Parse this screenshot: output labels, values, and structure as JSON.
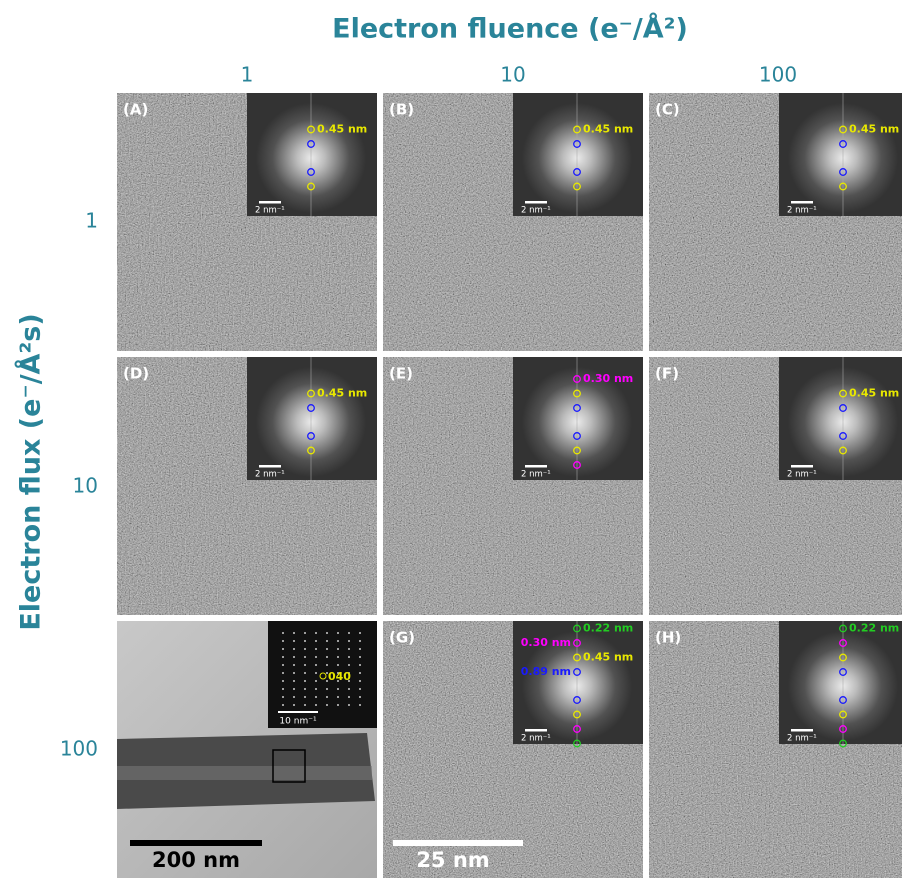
{
  "header": {
    "title": "Electron fluence (e⁻/Å²)",
    "columns": [
      "1",
      "10",
      "100"
    ]
  },
  "side": {
    "title": "Electron flux (e⁻/Å²s)",
    "rows": [
      "1",
      "10",
      "100"
    ]
  },
  "panels": [
    {
      "label": "(A)",
      "rings": [
        "#e8e800",
        "#1a1aff",
        "#1a1aff",
        "#e8e800"
      ],
      "fft_labels": [
        {
          "text": "0.45 nm",
          "color": "#e8e800"
        }
      ],
      "fft_scale": "2 nm⁻¹"
    },
    {
      "label": "(B)",
      "rings": [
        "#e8e800",
        "#1a1aff",
        "#1a1aff",
        "#e8e800"
      ],
      "fft_labels": [
        {
          "text": "0.45 nm",
          "color": "#e8e800"
        }
      ],
      "fft_scale": "2 nm⁻¹"
    },
    {
      "label": "(C)",
      "rings": [
        "#e8e800",
        "#1a1aff",
        "#1a1aff",
        "#e8e800"
      ],
      "fft_labels": [
        {
          "text": "0.45 nm",
          "color": "#e8e800"
        }
      ],
      "fft_scale": "2 nm⁻¹"
    },
    {
      "label": "(D)",
      "rings": [
        "#e8e800",
        "#1a1aff",
        "#1a1aff",
        "#e8e800"
      ],
      "fft_labels": [
        {
          "text": "0.45 nm",
          "color": "#e8e800"
        }
      ],
      "fft_scale": "2 nm⁻¹"
    },
    {
      "label": "(E)",
      "rings": [
        "#ff00ff",
        "#e8e800",
        "#1a1aff",
        "#1a1aff",
        "#e8e800",
        "#ff00ff"
      ],
      "fft_labels": [
        {
          "text": "0.30 nm",
          "color": "#ff00ff"
        }
      ],
      "fft_scale": "2 nm⁻¹"
    },
    {
      "label": "(F)",
      "rings": [
        "#e8e800",
        "#1a1aff",
        "#1a1aff",
        "#e8e800"
      ],
      "fft_labels": [
        {
          "text": "0.45 nm",
          "color": "#e8e800"
        }
      ],
      "fft_scale": "2 nm⁻¹"
    },
    {
      "diffraction_label": "040",
      "fft_scale": "10 nm⁻¹",
      "scale_bar": "200 nm"
    },
    {
      "label": "(G)",
      "rings": [
        "#22cc22",
        "#ff00ff",
        "#e8e800",
        "#1a1aff",
        "#1a1aff",
        "#e8e800",
        "#ff00ff",
        "#22cc22"
      ],
      "fft_labels": [
        {
          "text": "0.22 nm",
          "color": "#22cc22"
        },
        {
          "text": "0.30 nm",
          "color": "#ff00ff"
        },
        {
          "text": "0.45 nm",
          "color": "#e8e800"
        },
        {
          "text": "0.89 nm",
          "color": "#1a1aff"
        }
      ],
      "fft_scale": "2 nm⁻¹",
      "scale_bar": "25 nm"
    },
    {
      "label": "(H)",
      "rings": [
        "#22cc22",
        "#ff00ff",
        "#e8e800",
        "#1a1aff",
        "#1a1aff",
        "#e8e800",
        "#ff00ff",
        "#22cc22"
      ],
      "fft_labels": [
        {
          "text": "0.22 nm",
          "color": "#22cc22"
        }
      ],
      "fft_scale": "2 nm⁻¹"
    }
  ]
}
